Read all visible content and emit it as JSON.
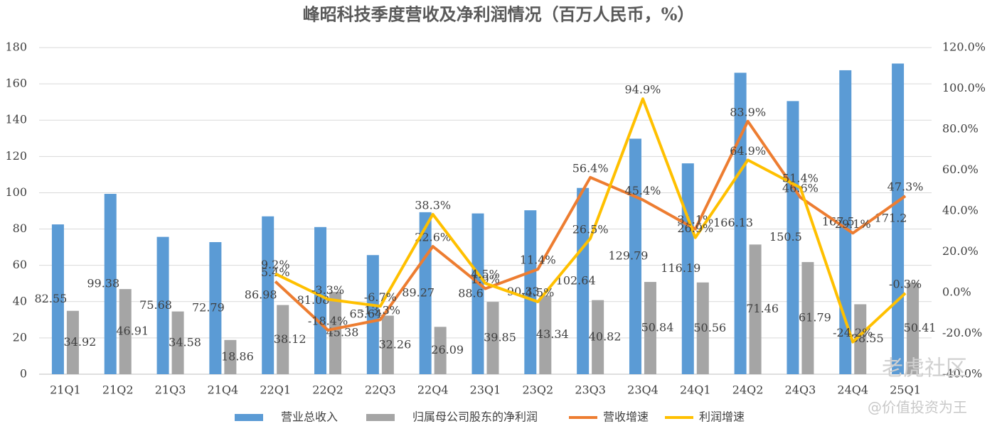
{
  "chart_data": {
    "type": "bar-line",
    "title": "峰昭科技季度营收及净利润情况（百万人民币，%）",
    "categories": [
      "21Q1",
      "21Q2",
      "21Q3",
      "21Q4",
      "22Q1",
      "22Q2",
      "22Q3",
      "22Q4",
      "23Q1",
      "23Q2",
      "23Q3",
      "23Q4",
      "24Q1",
      "24Q2",
      "24Q3",
      "24Q4",
      "25Q1"
    ],
    "series": [
      {
        "name": "营业总收入",
        "type": "bar",
        "color": "#5b9bd5",
        "values": [
          82.55,
          99.38,
          75.68,
          72.79,
          86.98,
          81.08,
          65.64,
          89.27,
          88.6,
          90.33,
          102.64,
          129.79,
          116.19,
          166.13,
          150.5,
          167.5,
          171.2
        ]
      },
      {
        "name": "归属母公司股东的净利润",
        "type": "bar",
        "color": "#a5a5a5",
        "values": [
          34.92,
          46.91,
          34.58,
          18.86,
          38.12,
          45.38,
          32.26,
          26.09,
          39.85,
          43.34,
          40.82,
          50.84,
          50.56,
          71.46,
          61.79,
          38.55,
          50.41
        ]
      },
      {
        "name": "营收增速",
        "type": "line",
        "axis": "y2",
        "color": "#ed7d31",
        "values": [
          null,
          null,
          null,
          null,
          5.4,
          -18.4,
          -13.3,
          22.6,
          1.9,
          11.4,
          56.4,
          45.4,
          31.1,
          83.9,
          46.6,
          29.1,
          47.3
        ],
        "value_labels": [
          null,
          null,
          null,
          null,
          "5.4%",
          "-18.4%",
          "-13.3%",
          "22.6%",
          "1.9%",
          "11.4%",
          "56.4%",
          "45.4%",
          "31.1%",
          "83.9%",
          "46.6%",
          "29.1%",
          "47.3%"
        ]
      },
      {
        "name": "利润增速",
        "type": "line",
        "axis": "y2",
        "color": "#ffc000",
        "values": [
          null,
          null,
          null,
          null,
          9.2,
          -3.3,
          -6.7,
          38.3,
          4.5,
          -4.5,
          26.5,
          94.9,
          26.9,
          64.9,
          51.4,
          -24.2,
          -0.3
        ],
        "value_labels": [
          null,
          null,
          null,
          null,
          "9.2%",
          "-3.3%",
          "-6.7%",
          "38.3%",
          "4.5%",
          "-4.5%",
          "26.5%",
          "94.9%",
          "26.9%",
          "64.9%",
          "51.4%",
          "-24.2%",
          "-0.3%"
        ]
      }
    ],
    "ylim": [
      0,
      180
    ],
    "yticks": [
      0,
      20,
      40,
      60,
      80,
      100,
      120,
      140,
      160,
      180
    ],
    "y2lim": [
      -40,
      120
    ],
    "y2ticks": [
      {
        "value": -40,
        "label": "-40.0%"
      },
      {
        "value": -20,
        "label": "-20.0%"
      },
      {
        "value": 0,
        "label": "0.0%"
      },
      {
        "value": 20,
        "label": "20.0%"
      },
      {
        "value": 40,
        "label": "40.0%"
      },
      {
        "value": 60,
        "label": "60.0%"
      },
      {
        "value": 80,
        "label": "80.0%"
      },
      {
        "value": 100,
        "label": "100.0%"
      },
      {
        "value": 120,
        "label": "120.0%"
      }
    ],
    "grid": true,
    "legend": "bottom",
    "watermark": [
      "老虎社区",
      "@价值投资为王"
    ]
  }
}
